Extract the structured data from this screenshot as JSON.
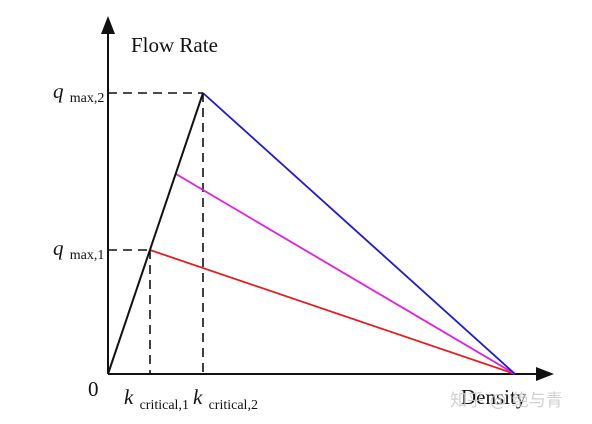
{
  "diagram": {
    "y_axis_label": "Flow Rate",
    "x_axis_label": "Density",
    "origin_label": "0",
    "q_max_2": {
      "symbol": "q",
      "subscript": "max,2"
    },
    "q_max_1": {
      "symbol": "q",
      "subscript": "max,1"
    },
    "k_critical_1": {
      "symbol": "k",
      "subscript": "critical,1"
    },
    "k_critical_2": {
      "symbol": "k",
      "subscript": "critical,2"
    },
    "watermark": "知乎 @ 绝与青",
    "colors": {
      "axis": "#111111",
      "free_flow_line": "#111111",
      "congested_line_1": "#e02020",
      "congested_line_mid": "#e020e0",
      "congested_line_2": "#1a1acc"
    }
  }
}
